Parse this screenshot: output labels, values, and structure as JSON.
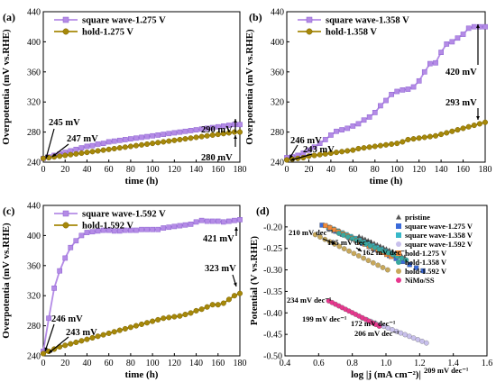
{
  "colors": {
    "square": "#b48be6",
    "hold": "#a6880a",
    "square_edge": "#8a5fd0",
    "hold_edge": "#7a6200"
  },
  "chart_data": [
    {
      "id": "a",
      "type": "line",
      "panel_label": "(a)",
      "xlabel": "time (h)",
      "ylabel": "Overpotentia (mV vs.RHE)",
      "xlim": [
        0,
        180
      ],
      "ylim": [
        240,
        440
      ],
      "xticks": [
        0,
        20,
        40,
        60,
        80,
        100,
        120,
        140,
        160,
        180
      ],
      "yticks": [
        240,
        280,
        320,
        360,
        400,
        440
      ],
      "legend": [
        "square wave-1.275 V",
        "hold-1.275 V"
      ],
      "legend_position": "top-left",
      "series": [
        {
          "name": "square wave-1.275 V",
          "x": [
            0,
            5,
            10,
            15,
            20,
            25,
            30,
            35,
            40,
            45,
            50,
            55,
            60,
            65,
            70,
            75,
            80,
            85,
            90,
            95,
            100,
            105,
            110,
            115,
            120,
            125,
            130,
            135,
            140,
            145,
            150,
            155,
            160,
            165,
            170,
            175,
            180
          ],
          "y": [
            245,
            247,
            249,
            251,
            253,
            255,
            257,
            259,
            261,
            262,
            264,
            265,
            267,
            268,
            269,
            270,
            271,
            272,
            273,
            274,
            275,
            276,
            277,
            278,
            279,
            280,
            281,
            282,
            283,
            284,
            285,
            286,
            287,
            288,
            289,
            290,
            290
          ]
        },
        {
          "name": "hold-1.275 V",
          "x": [
            0,
            5,
            10,
            15,
            20,
            25,
            30,
            35,
            40,
            45,
            50,
            55,
            60,
            65,
            70,
            75,
            80,
            85,
            90,
            95,
            100,
            105,
            110,
            115,
            120,
            125,
            130,
            135,
            140,
            145,
            150,
            155,
            160,
            165,
            170,
            175,
            180
          ],
          "y": [
            245,
            246,
            247,
            248,
            249,
            250,
            251,
            252,
            253,
            254,
            255,
            256,
            257,
            258,
            259,
            260,
            261,
            262,
            263,
            264,
            265,
            266,
            267,
            268,
            269,
            270,
            271,
            272,
            273,
            274,
            275,
            276,
            277,
            278,
            279,
            280,
            280
          ]
        }
      ],
      "annotations": [
        "245 mV",
        "247 mV",
        "290 mV",
        "280 mV"
      ]
    },
    {
      "id": "b",
      "type": "line",
      "panel_label": "(b)",
      "xlabel": "time (h)",
      "ylabel": "Overpotentia (mV vs.RHE)",
      "xlim": [
        0,
        180
      ],
      "ylim": [
        240,
        440
      ],
      "xticks": [
        0,
        20,
        40,
        60,
        80,
        100,
        120,
        140,
        160,
        180
      ],
      "yticks": [
        240,
        280,
        320,
        360,
        400,
        440
      ],
      "legend": [
        "square wave-1.358 V",
        "hold-1.358 V"
      ],
      "legend_position": "top-left",
      "series": [
        {
          "name": "square wave-1.358 V",
          "x": [
            0,
            5,
            10,
            15,
            20,
            25,
            30,
            35,
            40,
            45,
            50,
            55,
            60,
            65,
            70,
            75,
            80,
            85,
            90,
            95,
            100,
            105,
            110,
            115,
            120,
            125,
            130,
            135,
            140,
            145,
            150,
            155,
            160,
            165,
            170,
            175,
            180
          ],
          "y": [
            246,
            247,
            249,
            252,
            256,
            260,
            265,
            270,
            276,
            281,
            283,
            285,
            288,
            291,
            296,
            300,
            306,
            315,
            322,
            330,
            334,
            336,
            337,
            340,
            348,
            360,
            371,
            372,
            386,
            397,
            400,
            405,
            410,
            418,
            420,
            420,
            420
          ]
        },
        {
          "name": "hold-1.358 V",
          "x": [
            0,
            5,
            10,
            15,
            20,
            25,
            30,
            35,
            40,
            45,
            50,
            55,
            60,
            65,
            70,
            75,
            80,
            85,
            90,
            95,
            100,
            105,
            110,
            115,
            120,
            125,
            130,
            135,
            140,
            145,
            150,
            155,
            160,
            165,
            170,
            175,
            180
          ],
          "y": [
            243,
            244,
            245,
            246,
            248,
            249,
            250,
            251,
            252,
            253,
            254,
            255,
            256,
            258,
            259,
            260,
            261,
            262,
            263,
            264,
            265,
            267,
            270,
            271,
            272,
            273,
            274,
            275,
            277,
            279,
            281,
            283,
            285,
            287,
            289,
            291,
            293
          ]
        }
      ],
      "annotations": [
        "246 mV",
        "243 mV",
        "420 mV",
        "293 mV"
      ]
    },
    {
      "id": "c",
      "type": "line",
      "panel_label": "(c)",
      "xlabel": "time (h)",
      "ylabel": "Overpotentia (mV vs.RHE)",
      "xlim": [
        0,
        180
      ],
      "ylim": [
        240,
        440
      ],
      "xticks": [
        0,
        20,
        40,
        60,
        80,
        100,
        120,
        140,
        160,
        180
      ],
      "yticks": [
        240,
        280,
        320,
        360,
        400,
        440
      ],
      "legend": [
        "square wave-1.592 V",
        "hold-1.592 V"
      ],
      "legend_position": "top-left",
      "series": [
        {
          "name": "square wave-1.592 V",
          "x": [
            0,
            5,
            10,
            15,
            20,
            25,
            30,
            35,
            40,
            45,
            50,
            55,
            60,
            65,
            70,
            75,
            80,
            85,
            90,
            95,
            100,
            105,
            110,
            115,
            120,
            125,
            130,
            135,
            140,
            145,
            150,
            155,
            160,
            165,
            170,
            175,
            180
          ],
          "y": [
            246,
            290,
            330,
            353,
            370,
            384,
            393,
            400,
            404,
            405,
            406,
            407,
            407,
            406,
            406,
            407,
            407,
            407,
            408,
            408,
            408,
            408,
            410,
            411,
            412,
            413,
            414,
            415,
            418,
            420,
            419,
            419,
            419,
            418,
            419,
            420,
            421
          ]
        },
        {
          "name": "hold-1.592 V",
          "x": [
            0,
            5,
            10,
            15,
            20,
            25,
            30,
            35,
            40,
            45,
            50,
            55,
            60,
            65,
            70,
            75,
            80,
            85,
            90,
            95,
            100,
            105,
            110,
            115,
            120,
            125,
            130,
            135,
            140,
            145,
            150,
            155,
            160,
            165,
            170,
            175,
            180
          ],
          "y": [
            243,
            246,
            249,
            252,
            254,
            256,
            258,
            260,
            262,
            264,
            266,
            268,
            270,
            272,
            274,
            276,
            278,
            280,
            282,
            284,
            286,
            288,
            290,
            291,
            292,
            293,
            295,
            297,
            300,
            302,
            305,
            308,
            308,
            310,
            315,
            320,
            323
          ]
        }
      ],
      "annotations": [
        "246 mV",
        "243 mV",
        "421 mV",
        "323 mV"
      ]
    },
    {
      "id": "d",
      "type": "scatter",
      "panel_label": "(d)",
      "xlabel": "log |j (mA cm⁻²)|",
      "ylabel": "Potential (V vs.RHE)",
      "xlim": [
        0.4,
        1.6
      ],
      "ylim": [
        -0.5,
        -0.15
      ],
      "xticks": [
        0.4,
        0.6,
        0.8,
        1.0,
        1.2,
        1.4,
        1.6
      ],
      "yticks": [
        -0.2,
        -0.25,
        -0.3,
        -0.35,
        -0.4,
        -0.45,
        -0.5
      ],
      "legend": [
        "pristine",
        "square wave-1.275 V",
        "square wave-1.358 V",
        "square wave-1.592 V",
        "hold-1.275 V",
        "hold-1.358 V",
        "hold-1.592 V",
        "NiMo/SS"
      ],
      "legend_position": "top-right",
      "series": [
        {
          "name": "pristine",
          "marker": "triangle",
          "color": "#555555",
          "x_start": 0.84,
          "x_end": 1.11,
          "y_start": -0.223,
          "y_end": -0.271
        },
        {
          "name": "square wave-1.275 V",
          "marker": "square",
          "color": "#3a6ad9",
          "x_start": 0.62,
          "x_end": 1.22,
          "y_start": -0.196,
          "y_end": -0.302
        },
        {
          "name": "square wave-1.358 V",
          "marker": "square",
          "color": "#38b8c8",
          "x_start": 0.66,
          "x_end": 1.05,
          "y_start": -0.201,
          "y_end": -0.265
        },
        {
          "name": "square wave-1.592 V",
          "marker": "circle",
          "color": "#c8c0ec",
          "x_start": 0.86,
          "x_end": 1.24,
          "y_start": -0.412,
          "y_end": -0.47
        },
        {
          "name": "hold-1.275 V",
          "marker": "square",
          "color": "#ef8a3a",
          "x_start": 0.64,
          "x_end": 1.03,
          "y_start": -0.197,
          "y_end": -0.269
        },
        {
          "name": "hold-1.358 V",
          "marker": "circle",
          "color": "#3aa8a0",
          "x_start": 0.72,
          "x_end": 1.12,
          "y_start": -0.215,
          "y_end": -0.277
        },
        {
          "name": "hold-1.592 V",
          "marker": "circle",
          "color": "#c8a85a",
          "x_start": 0.58,
          "x_end": 1.01,
          "y_start": -0.218,
          "y_end": -0.3
        },
        {
          "name": "NiMo/SS",
          "marker": "circle",
          "color": "#e8368e",
          "x_start": 0.66,
          "x_end": 0.96,
          "y_start": -0.372,
          "y_end": -0.431
        }
      ],
      "annotations": [
        "210 mV dec⁻¹",
        "195 mV dec⁻¹",
        "162 mV dec⁻¹",
        "234 mV dec⁻¹",
        "172 mV dec⁻¹",
        "199 mV dec⁻¹",
        "206 mV dec⁻¹",
        "209 mV dec⁻¹"
      ]
    }
  ]
}
